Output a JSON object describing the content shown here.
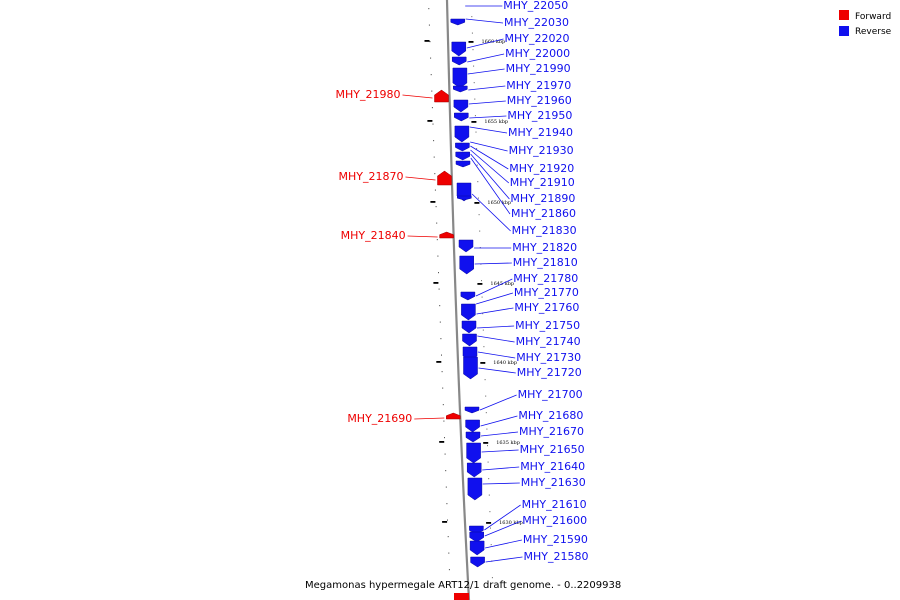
{
  "caption": "Megamonas hypermegale ART12/1 draft genome. - 0..2209938",
  "legend": {
    "items": [
      {
        "label": "Forward",
        "color": "#ee0000"
      },
      {
        "label": "Reverse",
        "color": "#1010ee"
      }
    ]
  },
  "colors": {
    "forward": "#ee0000",
    "reverse": "#1010ee",
    "axis": "#888888"
  },
  "scale_ticks": [
    {
      "label": "1660 kbp"
    },
    {
      "label": "1655 kbp"
    },
    {
      "label": "1650 kbp"
    },
    {
      "label": "1645 kbp"
    },
    {
      "label": "1640 kbp"
    },
    {
      "label": "1635 kbp"
    },
    {
      "label": "1630 kbp"
    }
  ],
  "genes": {
    "forward": [
      "MHY_21980",
      "MHY_21870",
      "MHY_21840",
      "MHY_21690"
    ],
    "reverse": [
      "MHY_22050",
      "MHY_22030",
      "MHY_22020",
      "MHY_22000",
      "MHY_21990",
      "MHY_21970",
      "MHY_21960",
      "MHY_21950",
      "MHY_21940",
      "MHY_21930",
      "MHY_21920",
      "MHY_21910",
      "MHY_21890",
      "MHY_21860",
      "MHY_21830",
      "MHY_21820",
      "MHY_21810",
      "MHY_21780",
      "MHY_21770",
      "MHY_21760",
      "MHY_21750",
      "MHY_21740",
      "MHY_21730",
      "MHY_21720",
      "MHY_21700",
      "MHY_21680",
      "MHY_21670",
      "MHY_21650",
      "MHY_21640",
      "MHY_21630",
      "MHY_21610",
      "MHY_21600",
      "MHY_21590",
      "MHY_21580"
    ]
  }
}
